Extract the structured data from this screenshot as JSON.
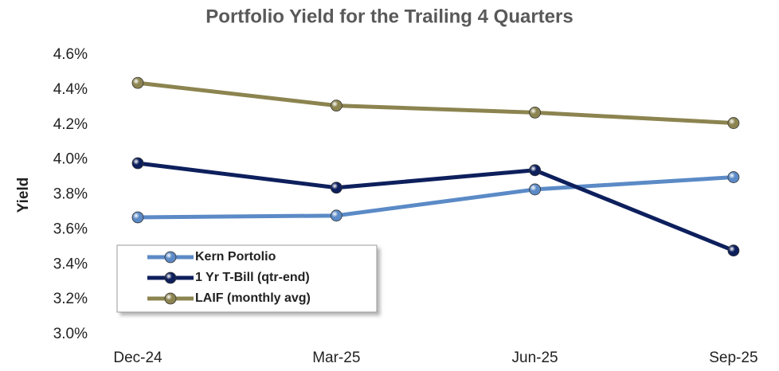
{
  "chart_data": {
    "type": "line",
    "title": "Portfolio Yield for the Trailing 4 Quarters",
    "y_label": "Yield",
    "categories": [
      "Dec-24",
      "Mar-25",
      "Jun-25",
      "Sep-25"
    ],
    "series": [
      {
        "name": "Kern Portolio",
        "color": "#5b8ac6",
        "values": [
          3.67,
          3.68,
          3.83,
          3.9
        ]
      },
      {
        "name": "1 Yr T-Bill (qtr-end)",
        "color": "#0d1f5c",
        "values": [
          3.98,
          3.84,
          3.94,
          3.48
        ]
      },
      {
        "name": "LAIF (monthly avg)",
        "color": "#8c8450",
        "values": [
          4.44,
          4.31,
          4.27,
          4.21
        ]
      }
    ],
    "ylim": [
      3.0,
      4.6
    ],
    "yticks": [
      {
        "value": 3.0,
        "label": "3.0%"
      },
      {
        "value": 3.2,
        "label": "3.2%"
      },
      {
        "value": 3.4,
        "label": "3.4%"
      },
      {
        "value": 3.6,
        "label": "3.6%"
      },
      {
        "value": 3.8,
        "label": "3.8%"
      },
      {
        "value": 4.0,
        "label": "4.0%"
      },
      {
        "value": 4.2,
        "label": "4.2%"
      },
      {
        "value": 4.4,
        "label": "4.4%"
      },
      {
        "value": 4.6,
        "label": "4.6%"
      }
    ],
    "grid": false,
    "legend": "lower left"
  }
}
